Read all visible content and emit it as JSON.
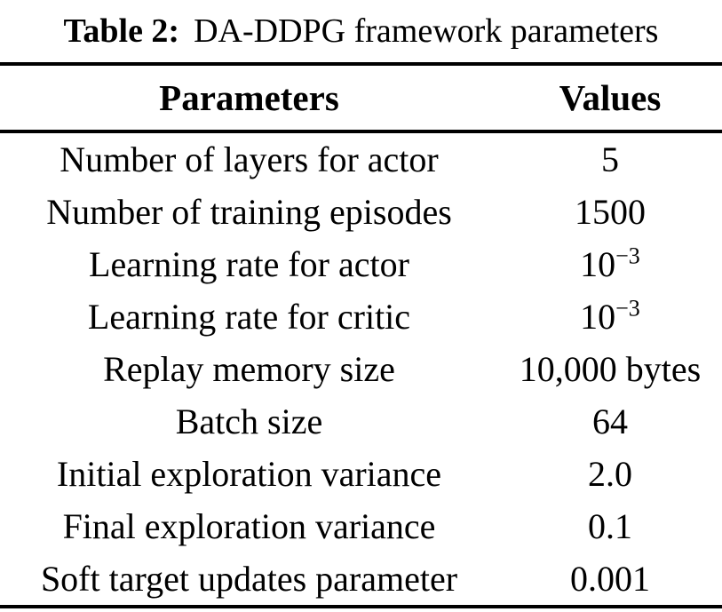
{
  "caption": {
    "label": "Table 2:",
    "text": "DA-DDPG framework parameters"
  },
  "table": {
    "headers": {
      "param": "Parameters",
      "value": "Values"
    },
    "rows": [
      {
        "param": "Number of layers for actor",
        "value": "5"
      },
      {
        "param": "Number of training episodes",
        "value": "1500"
      },
      {
        "param": "Learning rate for actor",
        "value": "10",
        "sup": "−3"
      },
      {
        "param": "Learning rate for critic",
        "value": "10",
        "sup": "−3"
      },
      {
        "param": "Replay memory size",
        "value": "10,000 bytes"
      },
      {
        "param": "Batch size",
        "value": "64"
      },
      {
        "param": "Initial exploration variance",
        "value": "2.0"
      },
      {
        "param": "Final exploration variance",
        "value": "0.1"
      },
      {
        "param": "Soft target updates parameter",
        "value": "0.001"
      }
    ]
  }
}
